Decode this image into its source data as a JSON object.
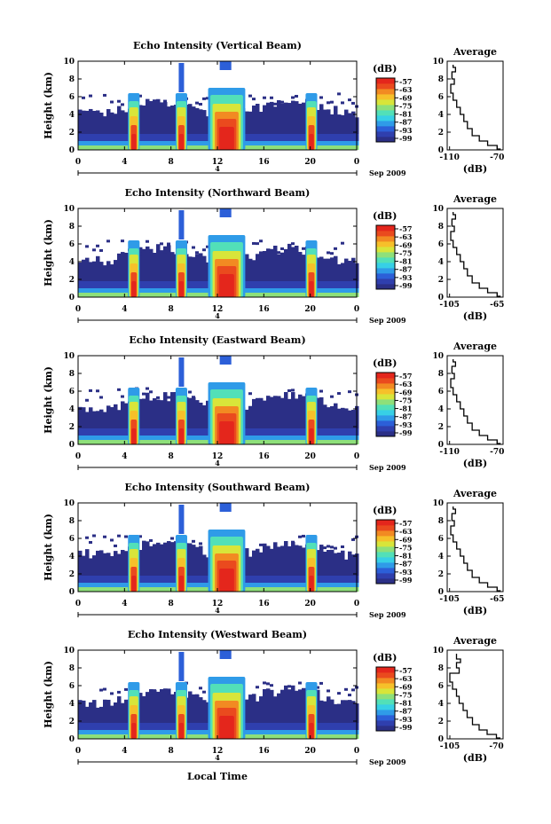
{
  "figure": {
    "xlabel": "Local Time",
    "ylabel": "Height (km)",
    "colorbar_unit": "(dB)",
    "date_label": "Sep 2009",
    "day_label": "4",
    "average_title": "Average",
    "average_xlabel": "(dB)"
  },
  "colorscale": [
    "#2b2f86",
    "#2f3fae",
    "#2c5fd8",
    "#2f9be8",
    "#37d0e6",
    "#52e0b8",
    "#8ee07a",
    "#d8e53a",
    "#f6c02a",
    "#f28a22",
    "#ea4a1e",
    "#e4261c"
  ],
  "chart_data": [
    {
      "type": "heatmap",
      "title": "Echo Intensity (Vertical Beam)",
      "x_ticks": [
        "0",
        "4",
        "8",
        "12",
        "16",
        "20",
        "0"
      ],
      "y_ticks": [
        "0",
        "2",
        "4",
        "6",
        "8",
        "10"
      ],
      "xlim": [
        0,
        24
      ],
      "ylim": [
        0,
        10
      ],
      "colorbar_ticks": [
        "-57",
        "-63",
        "-69",
        "-75",
        "-81",
        "-87",
        "-93",
        "-99"
      ],
      "rain_times": [
        4.8,
        8.9,
        12.8,
        20.1
      ],
      "average": {
        "type": "line",
        "x_ticks": [
          "-110",
          "-70"
        ],
        "y_ticks": [
          "0",
          "2",
          "4",
          "6",
          "8",
          "10"
        ],
        "xlim": [
          -112,
          -65
        ],
        "ylim": [
          0,
          10
        ],
        "profile": [
          [
            -67,
            0.1
          ],
          [
            -70,
            0.5
          ],
          [
            -78,
            1.0
          ],
          [
            -85,
            1.6
          ],
          [
            -91,
            2.4
          ],
          [
            -95,
            3.2
          ],
          [
            -98,
            4.0
          ],
          [
            -101,
            4.8
          ],
          [
            -104,
            5.6
          ],
          [
            -107,
            6.4
          ],
          [
            -109,
            7.4
          ],
          [
            -106,
            8.0
          ],
          [
            -108,
            8.8
          ],
          [
            -105,
            9.3
          ],
          [
            -107,
            9.6
          ]
        ]
      }
    },
    {
      "type": "heatmap",
      "title": "Echo Intensity (Northward Beam)",
      "x_ticks": [
        "0",
        "4",
        "8",
        "12",
        "16",
        "20",
        "0"
      ],
      "y_ticks": [
        "0",
        "2",
        "4",
        "6",
        "8",
        "10"
      ],
      "xlim": [
        0,
        24
      ],
      "ylim": [
        0,
        10
      ],
      "colorbar_ticks": [
        "-57",
        "-63",
        "-69",
        "-75",
        "-81",
        "-87",
        "-93",
        "-99"
      ],
      "rain_times": [
        4.8,
        8.9,
        12.8,
        20.1
      ],
      "average": {
        "type": "line",
        "x_ticks": [
          "-105",
          "-65"
        ],
        "y_ticks": [
          "0",
          "2",
          "4",
          "6",
          "8",
          "10"
        ],
        "xlim": [
          -107,
          -60
        ],
        "ylim": [
          0,
          10
        ],
        "profile": [
          [
            -62,
            0.1
          ],
          [
            -65,
            0.5
          ],
          [
            -73,
            1.0
          ],
          [
            -80,
            1.6
          ],
          [
            -86,
            2.4
          ],
          [
            -90,
            3.2
          ],
          [
            -93,
            4.0
          ],
          [
            -96,
            4.8
          ],
          [
            -99,
            5.6
          ],
          [
            -102,
            6.4
          ],
          [
            -104,
            7.4
          ],
          [
            -101,
            8.0
          ],
          [
            -103,
            8.8
          ],
          [
            -100,
            9.3
          ],
          [
            -102,
            9.6
          ]
        ]
      }
    },
    {
      "type": "heatmap",
      "title": "Echo Intensity (Eastward Beam)",
      "x_ticks": [
        "0",
        "4",
        "8",
        "12",
        "16",
        "20",
        "0"
      ],
      "y_ticks": [
        "0",
        "2",
        "4",
        "6",
        "8",
        "10"
      ],
      "xlim": [
        0,
        24
      ],
      "ylim": [
        0,
        10
      ],
      "colorbar_ticks": [
        "-57",
        "-63",
        "-69",
        "-75",
        "-81",
        "-87",
        "-93",
        "-99"
      ],
      "rain_times": [
        4.8,
        8.9,
        12.8,
        20.1
      ],
      "average": {
        "type": "line",
        "x_ticks": [
          "-110",
          "-70"
        ],
        "y_ticks": [
          "0",
          "2",
          "4",
          "6",
          "8",
          "10"
        ],
        "xlim": [
          -112,
          -65
        ],
        "ylim": [
          0,
          10
        ],
        "profile": [
          [
            -67,
            0.1
          ],
          [
            -70,
            0.5
          ],
          [
            -78,
            1.0
          ],
          [
            -85,
            1.6
          ],
          [
            -91,
            2.4
          ],
          [
            -95,
            3.2
          ],
          [
            -98,
            4.0
          ],
          [
            -101,
            4.8
          ],
          [
            -104,
            5.6
          ],
          [
            -107,
            6.4
          ],
          [
            -109,
            7.4
          ],
          [
            -106,
            8.0
          ],
          [
            -108,
            8.8
          ],
          [
            -105,
            9.3
          ],
          [
            -107,
            9.6
          ]
        ]
      }
    },
    {
      "type": "heatmap",
      "title": "Echo Intensity (Southward Beam)",
      "x_ticks": [
        "0",
        "4",
        "8",
        "12",
        "16",
        "20",
        "0"
      ],
      "y_ticks": [
        "0",
        "2",
        "4",
        "6",
        "8",
        "10"
      ],
      "xlim": [
        0,
        24
      ],
      "ylim": [
        0,
        10
      ],
      "colorbar_ticks": [
        "-57",
        "-63",
        "-69",
        "-75",
        "-81",
        "-87",
        "-93",
        "-99"
      ],
      "rain_times": [
        4.8,
        8.9,
        12.8,
        20.1
      ],
      "average": {
        "type": "line",
        "x_ticks": [
          "-105",
          "-65"
        ],
        "y_ticks": [
          "0",
          "2",
          "4",
          "6",
          "8",
          "10"
        ],
        "xlim": [
          -107,
          -60
        ],
        "ylim": [
          0,
          10
        ],
        "profile": [
          [
            -62,
            0.1
          ],
          [
            -65,
            0.5
          ],
          [
            -73,
            1.0
          ],
          [
            -80,
            1.6
          ],
          [
            -86,
            2.4
          ],
          [
            -90,
            3.2
          ],
          [
            -93,
            4.0
          ],
          [
            -96,
            4.8
          ],
          [
            -99,
            5.6
          ],
          [
            -102,
            6.4
          ],
          [
            -104,
            7.4
          ],
          [
            -101,
            8.0
          ],
          [
            -103,
            8.8
          ],
          [
            -100,
            9.3
          ],
          [
            -102,
            9.6
          ]
        ]
      }
    },
    {
      "type": "heatmap",
      "title": "Echo Intensity (Westward Beam)",
      "x_ticks": [
        "0",
        "4",
        "8",
        "12",
        "16",
        "20",
        "0"
      ],
      "y_ticks": [
        "0",
        "2",
        "4",
        "6",
        "8",
        "10"
      ],
      "xlim": [
        0,
        24
      ],
      "ylim": [
        0,
        10
      ],
      "colorbar_ticks": [
        "-57",
        "-63",
        "-69",
        "-75",
        "-81",
        "-87",
        "-93",
        "-99"
      ],
      "rain_times": [
        4.8,
        8.9,
        12.8,
        20.1
      ],
      "average": {
        "type": "line",
        "x_ticks": [
          "-105",
          "-70"
        ],
        "y_ticks": [
          "0",
          "2",
          "4",
          "6",
          "8",
          "10"
        ],
        "xlim": [
          -107,
          -65
        ],
        "ylim": [
          0,
          10
        ],
        "profile": [
          [
            -67,
            0.1
          ],
          [
            -70,
            0.5
          ],
          [
            -77,
            1.0
          ],
          [
            -83,
            1.6
          ],
          [
            -88,
            2.4
          ],
          [
            -92,
            3.2
          ],
          [
            -95,
            4.0
          ],
          [
            -98,
            4.8
          ],
          [
            -100,
            5.6
          ],
          [
            -103,
            6.4
          ],
          [
            -105,
            7.4
          ],
          [
            -98,
            8.0
          ],
          [
            -100,
            8.6
          ],
          [
            -97,
            9.0
          ],
          [
            -100,
            9.6
          ]
        ]
      }
    }
  ]
}
